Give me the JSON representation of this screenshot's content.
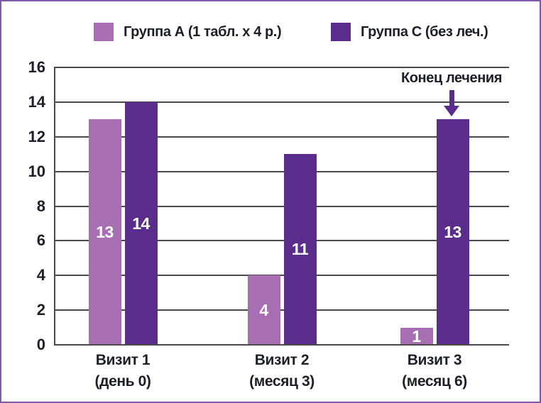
{
  "frame": {
    "border_color": "#7e5aa8"
  },
  "colors": {
    "series_a": "#a76fb1",
    "series_c": "#5a2d8c",
    "grid": "#4a4a4a",
    "text": "#1e1e28",
    "bar_label": "#ffffff"
  },
  "legend": {
    "items": [
      {
        "label": "Группа А (1 табл. х 4 р.)",
        "color": "#a76fb1"
      },
      {
        "label": "Группа С (без леч.)",
        "color": "#5a2d8c"
      }
    ]
  },
  "annotation": {
    "text": "Конец лечения"
  },
  "chart_data": {
    "type": "bar",
    "categories": [
      {
        "line1": "Визит 1",
        "line2": "(день 0)"
      },
      {
        "line1": "Визит 2",
        "line2": "(месяц 3)"
      },
      {
        "line1": "Визит 3",
        "line2": "(месяц 6)"
      }
    ],
    "series": [
      {
        "name": "Группа А (1 табл. х 4 р.)",
        "color": "#a76fb1",
        "values": [
          13,
          4,
          1
        ]
      },
      {
        "name": "Группа С (без леч.)",
        "color": "#5a2d8c",
        "values": [
          14,
          11,
          13
        ]
      }
    ],
    "ylim": [
      0,
      16
    ],
    "yticks": [
      0,
      2,
      4,
      6,
      8,
      10,
      12,
      14,
      16
    ],
    "grid": true,
    "legend_position": "top",
    "bar_value_labels": true,
    "annotation": {
      "text": "Конец лечения",
      "series": 1,
      "category": 2
    }
  }
}
